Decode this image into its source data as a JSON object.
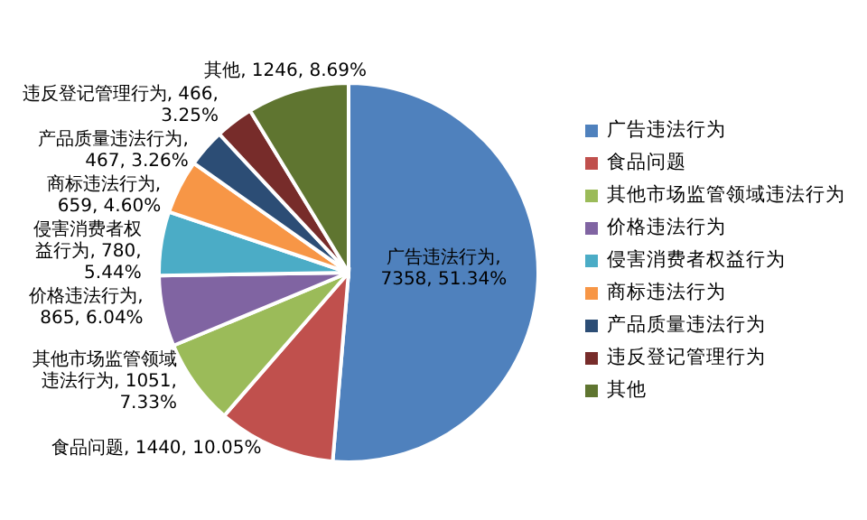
{
  "chart_data": {
    "type": "pie",
    "categories": [
      "广告违法行为",
      "食品问题",
      "其他市场监管领域违法行为",
      "价格违法行为",
      "侵害消费者权益行为",
      "商标违法行为",
      "产品质量违法行为",
      "违反登记管理行为",
      "其他"
    ],
    "values": [
      7358,
      1440,
      1051,
      865,
      780,
      659,
      467,
      466,
      1246
    ],
    "colors": [
      "#4f81bd",
      "#c0504d",
      "#9bbb59",
      "#8064a2",
      "#4bacc6",
      "#f79646",
      "#2c4d75",
      "#772c2a",
      "#5f7530"
    ],
    "value_labels": [
      "广告违法行为, 7358, 51.34%",
      "食品问题, 1440, 10.05%",
      "其他市场监管领域违法行为, 1051, 7.33%",
      "价格违法行为, 865, 6.04%",
      "侵害消费者权益行为, 780, 5.44%",
      "商标违法行为, 659, 4.60%",
      "产品质量违法行为, 467, 3.26%",
      "违反登记管理行为, 466, 3.25%",
      "其他, 1246, 8.69%"
    ],
    "legend": "right"
  }
}
